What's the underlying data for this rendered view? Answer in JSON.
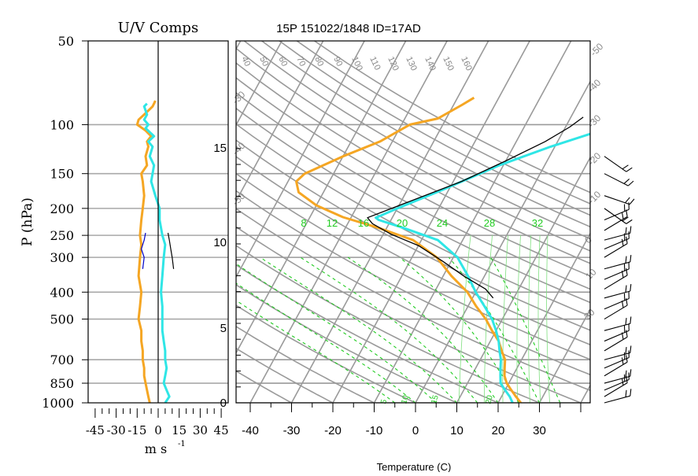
{
  "chart_data": [
    {
      "type": "line",
      "title": "U/V Comps",
      "xlabel": "m s",
      "xlabel_sup": "-1",
      "ylabel": "P (hPa)",
      "y_scale": "log",
      "ylim": [
        1000,
        50
      ],
      "xlim": [
        -50,
        50
      ],
      "grid": true,
      "pressure_ticks": [
        "50",
        "100",
        "150",
        "200",
        "250",
        "300",
        "400",
        "500",
        "700",
        "850",
        "1000"
      ],
      "x_ticks": [
        "-45",
        "-30",
        "-15",
        "0",
        "15",
        "30",
        "45"
      ],
      "series": [
        {
          "color": "#f5a623",
          "points": [
            [
              -6,
              1000
            ],
            [
              -7,
              950
            ],
            [
              -8,
              900
            ],
            [
              -9,
              850
            ],
            [
              -10,
              800
            ],
            [
              -10,
              750
            ],
            [
              -11,
              700
            ],
            [
              -11,
              650
            ],
            [
              -12,
              600
            ],
            [
              -12,
              550
            ],
            [
              -14,
              500
            ],
            [
              -13,
              450
            ],
            [
              -12,
              400
            ],
            [
              -14,
              350
            ],
            [
              -13,
              300
            ],
            [
              -12,
              270
            ],
            [
              -13,
              250
            ],
            [
              -12,
              220
            ],
            [
              -11,
              200
            ],
            [
              -10,
              180
            ],
            [
              -11,
              160
            ],
            [
              -12,
              150
            ],
            [
              -8,
              140
            ],
            [
              -9,
              130
            ],
            [
              -7,
              120
            ],
            [
              -8,
              115
            ],
            [
              -5,
              110
            ],
            [
              -9,
              105
            ],
            [
              -15,
              100
            ],
            [
              -14,
              96
            ],
            [
              -10,
              92
            ],
            [
              -6,
              88
            ],
            [
              -4,
              86
            ],
            [
              -3,
              84
            ],
            [
              -2,
              82
            ]
          ]
        },
        {
          "color": "#2fe6e6",
          "points": [
            [
              5,
              1000
            ],
            [
              8,
              950
            ],
            [
              6,
              900
            ],
            [
              4,
              850
            ],
            [
              5,
              800
            ],
            [
              6,
              750
            ],
            [
              5,
              700
            ],
            [
              5,
              650
            ],
            [
              4,
              600
            ],
            [
              3,
              550
            ],
            [
              3,
              500
            ],
            [
              3,
              450
            ],
            [
              2,
              400
            ],
            [
              3,
              350
            ],
            [
              4,
              300
            ],
            [
              5,
              270
            ],
            [
              3,
              250
            ],
            [
              1,
              220
            ],
            [
              1,
              200
            ],
            [
              -2,
              180
            ],
            [
              -5,
              160
            ],
            [
              -4,
              150
            ],
            [
              -3,
              140
            ],
            [
              -6,
              130
            ],
            [
              -4,
              120
            ],
            [
              -7,
              115
            ],
            [
              -3,
              110
            ],
            [
              -9,
              103
            ],
            [
              -7,
              100
            ],
            [
              -10,
              96
            ],
            [
              -8,
              92
            ],
            [
              -10,
              86
            ],
            [
              -8,
              84
            ]
          ]
        },
        {
          "color": "#000000",
          "points": [
            [
              11,
              330
            ],
            [
              10,
              300
            ],
            [
              9,
              280
            ],
            [
              8,
              260
            ],
            [
              7,
              245
            ]
          ]
        },
        {
          "color": "#0000c8",
          "points": [
            [
              -11,
              330
            ],
            [
              -10,
              300
            ],
            [
              -12,
              280
            ],
            [
              -10,
              260
            ],
            [
              -9,
              245
            ]
          ]
        }
      ]
    },
    {
      "type": "line",
      "title": "15P 151022/1848 ID=17AD",
      "xlabel": "Temperature (C)",
      "x_ticks": [
        "-40",
        "-30",
        "-20",
        "-10",
        "0",
        "10",
        "20",
        "30"
      ],
      "height_km_ticks": [
        "0",
        "5",
        "10",
        "15"
      ],
      "dry_adiabat_labels": [
        "40",
        "50",
        "60",
        "70",
        "80",
        "90",
        "100",
        "110",
        "120",
        "130",
        "140",
        "150",
        "160"
      ],
      "mixing_ratio_labels": [
        "8",
        "12",
        "16",
        "20",
        "24",
        "28",
        "32"
      ],
      "moist_adiabat_labels": [
        "5",
        "10",
        "15",
        "20"
      ],
      "isotherm_labels": [
        "-50",
        "-40",
        "-30",
        "-20",
        "-10",
        "0",
        "10",
        "20",
        "-30",
        "-40",
        "-50"
      ],
      "series": [
        {
          "color": "#f5a623",
          "points": [
            [
              25.5,
              1000
            ],
            [
              23.5,
              950
            ],
            [
              21.5,
              900
            ],
            [
              19.5,
              850
            ],
            [
              18,
              800
            ],
            [
              17,
              750
            ],
            [
              16,
              700
            ],
            [
              14,
              650
            ],
            [
              12,
              600
            ],
            [
              9,
              550
            ],
            [
              6,
              500
            ],
            [
              2,
              450
            ],
            [
              -2,
              400
            ],
            [
              -8,
              350
            ],
            [
              -14,
              300
            ],
            [
              -22,
              260
            ],
            [
              -32,
              235
            ],
            [
              -42,
              215
            ],
            [
              -50,
              195
            ],
            [
              -56,
              175
            ],
            [
              -58,
              160
            ],
            [
              -57,
              150
            ],
            [
              -50,
              130
            ],
            [
              -43,
              115
            ],
            [
              -38,
              100
            ],
            [
              -32,
              95
            ],
            [
              -28,
              85
            ],
            [
              -26,
              80
            ]
          ]
        },
        {
          "color": "#2fe6e6",
          "points": [
            [
              23.5,
              1000
            ],
            [
              22,
              950
            ],
            [
              20,
              900
            ],
            [
              18,
              850
            ],
            [
              17,
              800
            ],
            [
              16,
              750
            ],
            [
              15,
              700
            ],
            [
              13.5,
              650
            ],
            [
              12,
              600
            ],
            [
              10,
              550
            ],
            [
              7.5,
              500
            ],
            [
              4,
              450
            ],
            [
              0,
              400
            ],
            [
              -4,
              350
            ],
            [
              -9,
              300
            ],
            [
              -16,
              260
            ],
            [
              -26,
              235
            ],
            [
              -33,
              220
            ],
            [
              -34,
              216
            ],
            [
              -30,
              200
            ],
            [
              -21,
              170
            ],
            [
              -11,
              140
            ],
            [
              -1,
              120
            ],
            [
              9,
              105
            ],
            [
              16,
              96
            ]
          ]
        },
        {
          "color": "#000000",
          "points": [
            [
              5,
              420
            ],
            [
              2,
              390
            ],
            [
              -5,
              350
            ],
            [
              -12,
              310
            ],
            [
              -20,
              272
            ],
            [
              -28,
              248
            ],
            [
              -34,
              227
            ],
            [
              -36,
              216
            ],
            [
              -18,
              160
            ],
            [
              -10,
              135
            ],
            [
              -3,
              115
            ],
            [
              1,
              102
            ],
            [
              3,
              94
            ]
          ]
        }
      ]
    }
  ]
}
